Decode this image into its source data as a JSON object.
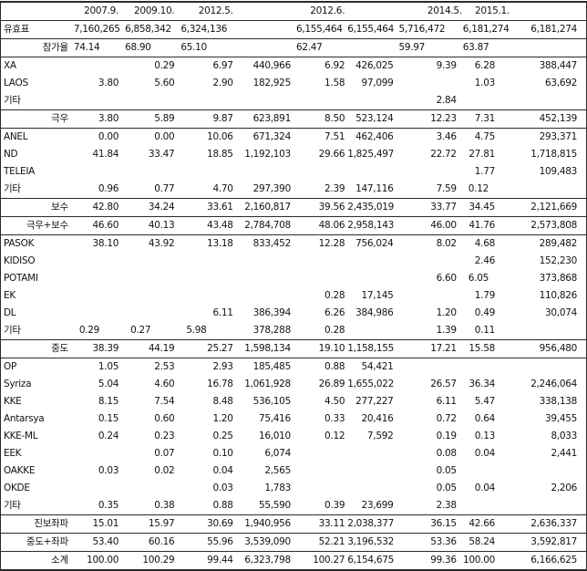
{
  "colors": {
    "border": "#2b2b2b",
    "text": "#131313",
    "background": "#ffffff"
  },
  "table": {
    "header": {
      "labels": [
        "2007.9.",
        "2009.10.",
        "2012.5.",
        "",
        "2012.6.",
        "",
        "2014.5.",
        "2015.1.",
        ""
      ]
    },
    "rows": [
      {
        "label": "유효표",
        "type": "info",
        "label_align": "left",
        "left_cells": [
          0,
          1,
          2,
          4,
          6,
          7
        ],
        "cells": [
          "7,160,265",
          "6,858,342",
          "6,324,136",
          "",
          "6,155,464",
          "6,155,464",
          "5,716,472",
          "6,181,274",
          "6,181,274"
        ]
      },
      {
        "label": "참가율",
        "type": "info",
        "label_align": "right",
        "left_cells": [
          0,
          1,
          2,
          4,
          6,
          7
        ],
        "cells": [
          "74.14",
          "68.90",
          "65.10",
          "",
          "62.47",
          "",
          "59.97",
          "63.87",
          ""
        ]
      },
      {
        "label": "XA",
        "type": "party",
        "label_align": "left",
        "left_cells": [],
        "cells": [
          "",
          "0.29",
          "6.97",
          "440,966",
          "6.92",
          "426,025",
          "9.39",
          "6.28",
          "388,447"
        ]
      },
      {
        "label": "LAOS",
        "type": "party",
        "label_align": "left",
        "left_cells": [],
        "cells": [
          "3.80",
          "5.60",
          "2.90",
          "182,925",
          "1.58",
          "97,099",
          "",
          "1.03",
          "63,692"
        ]
      },
      {
        "label": "기타",
        "type": "party",
        "label_align": "left",
        "left_cells": [],
        "cells": [
          "",
          "",
          "",
          "",
          "",
          "",
          "2.84",
          "",
          ""
        ]
      },
      {
        "label": "극우",
        "type": "total",
        "label_align": "right",
        "left_cells": [],
        "cells": [
          "3.80",
          "5.89",
          "9.87",
          "623,891",
          "8.50",
          "523,124",
          "12.23",
          "7.31",
          "452,139"
        ]
      },
      {
        "label": "ANEL",
        "type": "party",
        "label_align": "left",
        "left_cells": [],
        "cells": [
          "0.00",
          "0.00",
          "10.06",
          "671,324",
          "7.51",
          "462,406",
          "3.46",
          "4.75",
          "293,371"
        ]
      },
      {
        "label": "ND",
        "type": "party",
        "label_align": "left",
        "left_cells": [],
        "cells": [
          "41.84",
          "33.47",
          "18.85",
          "1,192,103",
          "29.66",
          "1,825,497",
          "22.72",
          "27.81",
          "1,718,815"
        ]
      },
      {
        "label": "TELEIA",
        "type": "party",
        "label_align": "left",
        "left_cells": [],
        "cells": [
          "",
          "",
          "",
          "",
          "",
          "",
          "",
          "1.77",
          "109,483"
        ]
      },
      {
        "label": "기타",
        "type": "party",
        "label_align": "left",
        "left_cells": [
          7
        ],
        "cells": [
          "0.96",
          "0.77",
          "4.70",
          "297,390",
          "2.39",
          "147,116",
          "7.59",
          "0.12",
          ""
        ]
      },
      {
        "label": "보수",
        "type": "total",
        "label_align": "right",
        "left_cells": [],
        "cells": [
          "42.80",
          "34.24",
          "33.61",
          "2,160,817",
          "39.56",
          "2,435,019",
          "33.77",
          "34.45",
          "2,121,669"
        ]
      },
      {
        "label": "극우+보수",
        "type": "total",
        "label_align": "right",
        "left_cells": [],
        "cells": [
          "46.60",
          "40.13",
          "43.48",
          "2,784,708",
          "48.06",
          "2,958,143",
          "46.00",
          "41.76",
          "2,573,808"
        ]
      },
      {
        "label": "PASOK",
        "type": "party",
        "label_align": "left",
        "left_cells": [],
        "cells": [
          "38.10",
          "43.92",
          "13.18",
          "833,452",
          "12.28",
          "756,024",
          "8.02",
          "4.68",
          "289,482"
        ]
      },
      {
        "label": "KIDISO",
        "type": "party",
        "label_align": "left",
        "left_cells": [],
        "cells": [
          "",
          "",
          "",
          "",
          "",
          "",
          "",
          "2.46",
          "152,230"
        ]
      },
      {
        "label": "POTAMI",
        "type": "party",
        "label_align": "left",
        "left_cells": [
          7
        ],
        "cells": [
          "",
          "",
          "",
          "",
          "",
          "",
          "6.60",
          "6.05",
          "373,868"
        ]
      },
      {
        "label": "EK",
        "type": "party",
        "label_align": "left",
        "left_cells": [],
        "cells": [
          "",
          "",
          "",
          "",
          "0.28",
          "17,145",
          "",
          "1.79",
          "110,826"
        ]
      },
      {
        "label": "DL",
        "type": "party",
        "label_align": "left",
        "left_cells": [],
        "cells": [
          "",
          "",
          "6.11",
          "386,394",
          "6.26",
          "384,986",
          "1.20",
          "0.49",
          "30,074"
        ]
      },
      {
        "label": "기타",
        "type": "party",
        "label_align": "left",
        "left_cells": [
          0,
          1,
          2
        ],
        "cells": [
          "0.29",
          "0.27",
          "5.98",
          "378,288",
          "0.28",
          "",
          "1.39",
          "0.11",
          ""
        ]
      },
      {
        "label": "중도",
        "type": "total",
        "label_align": "right",
        "left_cells": [],
        "cells": [
          "38.39",
          "44.19",
          "25.27",
          "1,598,134",
          "19.10",
          "1,158,155",
          "17.21",
          "15.58",
          "956,480"
        ]
      },
      {
        "label": "OP",
        "type": "party",
        "label_align": "left",
        "left_cells": [],
        "cells": [
          "1.05",
          "2.53",
          "2.93",
          "185,485",
          "0.88",
          "54,421",
          "",
          "",
          ""
        ]
      },
      {
        "label": "Syriza",
        "type": "party",
        "label_align": "left",
        "left_cells": [],
        "cells": [
          "5.04",
          "4.60",
          "16.78",
          "1,061,928",
          "26.89",
          "1,655,022",
          "26.57",
          "36.34",
          "2,246,064"
        ]
      },
      {
        "label": "KKE",
        "type": "party",
        "label_align": "left",
        "left_cells": [],
        "cells": [
          "8.15",
          "7.54",
          "8.48",
          "536,105",
          "4.50",
          "277,227",
          "6.11",
          "5.47",
          "338,138"
        ]
      },
      {
        "label": "Antarsya",
        "type": "party",
        "label_align": "left",
        "left_cells": [],
        "cells": [
          "0.15",
          "0.60",
          "1.20",
          "75,416",
          "0.33",
          "20,416",
          "0.72",
          "0.64",
          "39,455"
        ]
      },
      {
        "label": "KKE-ML",
        "type": "party",
        "label_align": "left",
        "left_cells": [],
        "cells": [
          "0.24",
          "0.23",
          "0.25",
          "16,010",
          "0.12",
          "7,592",
          "0.19",
          "0.13",
          "8,033"
        ]
      },
      {
        "label": "EEK",
        "type": "party",
        "label_align": "left",
        "left_cells": [],
        "cells": [
          "",
          "0.07",
          "0.10",
          "6,074",
          "",
          "",
          "0.08",
          "0.04",
          "2,441"
        ]
      },
      {
        "label": "OAKKE",
        "type": "party",
        "label_align": "left",
        "left_cells": [],
        "cells": [
          "0.03",
          "0.02",
          "0.04",
          "2,565",
          "",
          "",
          "0.05",
          "",
          ""
        ]
      },
      {
        "label": "OKDE",
        "type": "party",
        "label_align": "left",
        "left_cells": [],
        "cells": [
          "",
          "",
          "0.03",
          "1,783",
          "",
          "",
          "0.05",
          "0.04",
          "2,206"
        ]
      },
      {
        "label": "기타",
        "type": "party",
        "label_align": "left",
        "left_cells": [],
        "cells": [
          "0.35",
          "0.38",
          "0.88",
          "55,590",
          "0.39",
          "23,699",
          "2.38",
          "",
          ""
        ]
      },
      {
        "label": "진보좌파",
        "type": "total",
        "label_align": "right",
        "left_cells": [],
        "cells": [
          "15.01",
          "15.97",
          "30.69",
          "1,940,956",
          "33.11",
          "2,038,377",
          "36.15",
          "42.66",
          "2,636,337"
        ]
      },
      {
        "label": "중도+좌파",
        "type": "total",
        "label_align": "right",
        "left_cells": [],
        "cells": [
          "53.40",
          "60.16",
          "55.96",
          "3,539,090",
          "52.21",
          "3,196,532",
          "53.36",
          "58.24",
          "3,592,817"
        ]
      },
      {
        "label": "소계",
        "type": "total",
        "label_align": "right",
        "left_cells": [],
        "cells": [
          "100.00",
          "100.29",
          "99.44",
          "6,323,798",
          "100.27",
          "6,154,675",
          "99.36",
          "100.00",
          "6,166,625"
        ]
      }
    ]
  }
}
